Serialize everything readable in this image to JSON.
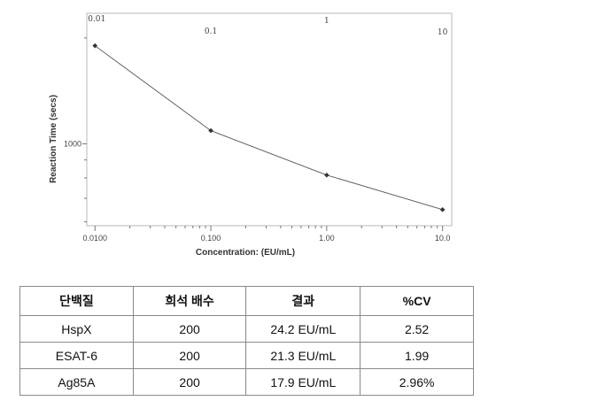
{
  "chart_data": {
    "type": "line",
    "xlabel": "Concentration: (EU/mL)",
    "ylabel": "Reaction Time (secs)",
    "x_scale": "log",
    "y_scale": "log",
    "x_ticklabels": [
      "0.0100",
      "0.100",
      "1.00",
      "10.0"
    ],
    "top_ticklabels": [
      "0.01",
      "0.1",
      "1",
      "10"
    ],
    "y_ticklabels": [
      "1000"
    ],
    "xlim": [
      0.0085,
      12
    ],
    "ylim": [
      585,
      2350
    ],
    "series": [
      {
        "x": [
          0.01,
          0.1,
          1.0,
          10.0
        ],
        "y": [
          1900,
          1090,
          815,
          650
        ]
      }
    ]
  },
  "table": {
    "headers": [
      "단백질",
      "희석 배수",
      "결과",
      "%CV"
    ],
    "rows": [
      [
        "HspX",
        "200",
        "24.2 EU/mL",
        "2.52"
      ],
      [
        "ESAT-6",
        "200",
        "21.3 EU/mL",
        "1.99"
      ],
      [
        "Ag85A",
        "200",
        "17.9 EU/mL",
        "2.96%"
      ]
    ]
  }
}
